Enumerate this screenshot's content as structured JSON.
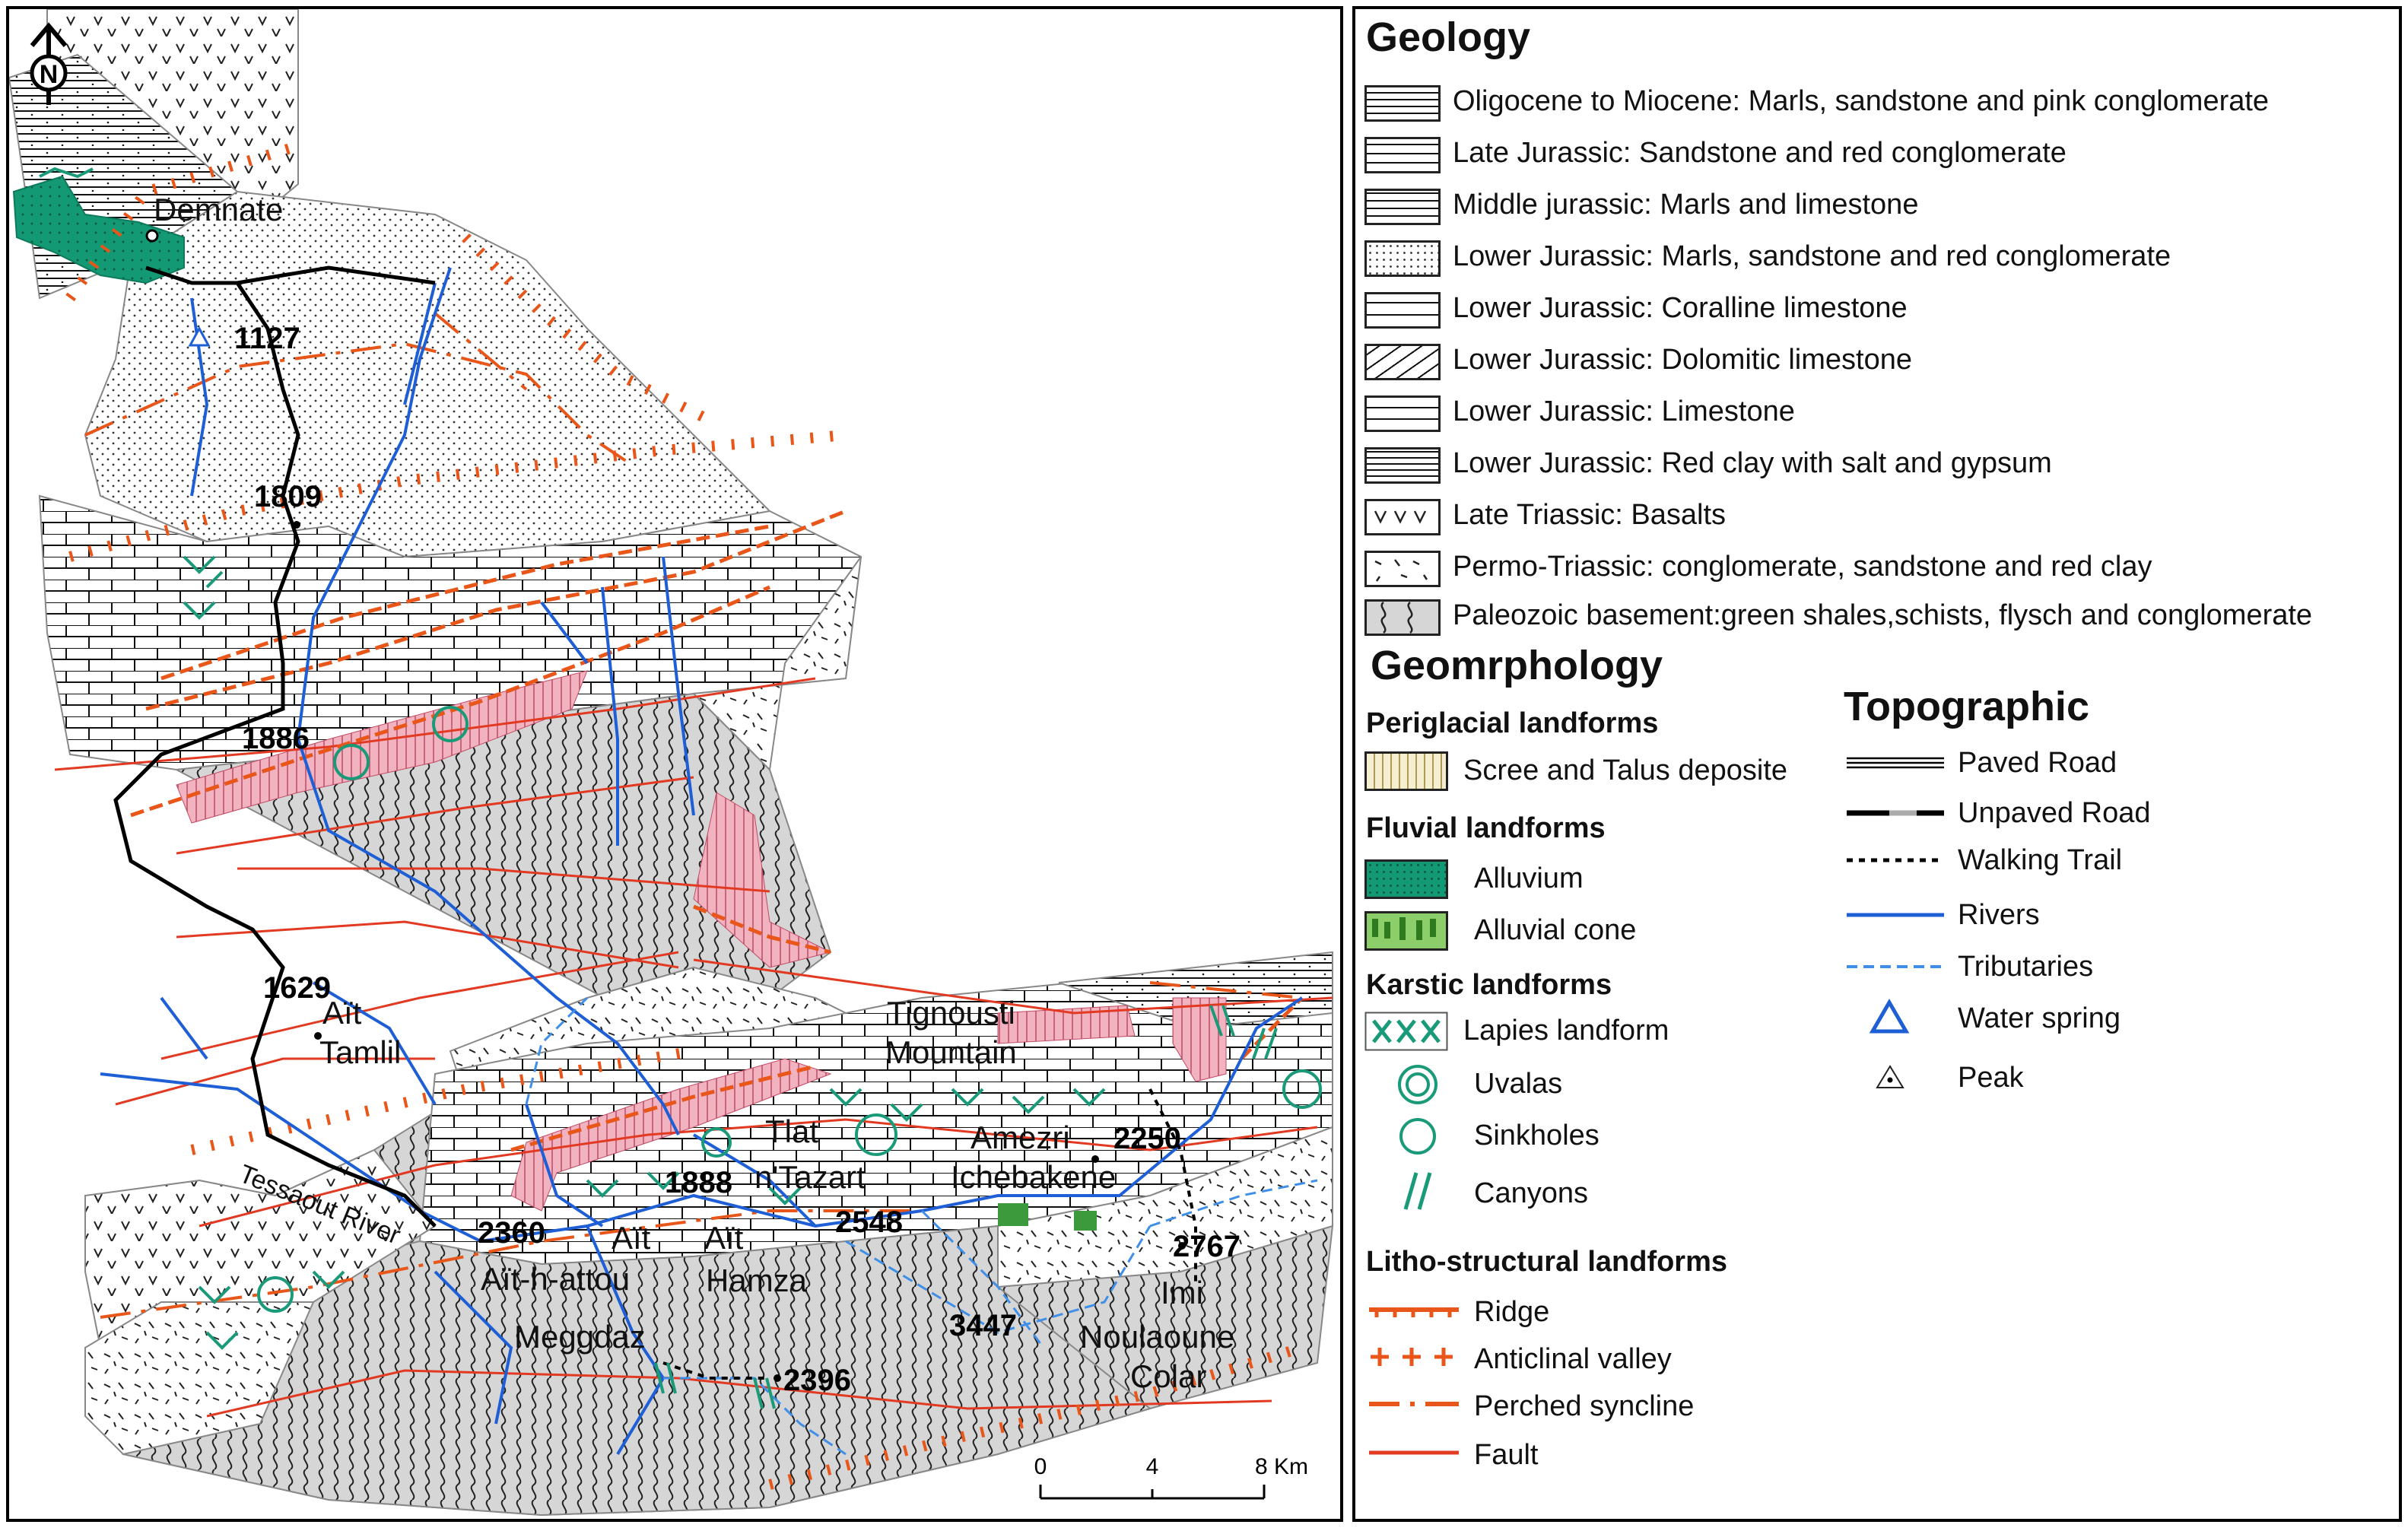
{
  "map": {
    "north_arrow": "N",
    "place_labels": [
      "Demnate",
      "Tignousti",
      "Mountain",
      "Aït",
      "Tamlil",
      "Tessaout River",
      "Tlat",
      "n'Tazart",
      "Amezri",
      "Ichebakene",
      "Aït",
      "Aït-h-attou",
      "Aït",
      "Hamza",
      "Meggdaz",
      "Imi",
      "Noulaoune",
      "Colar"
    ],
    "spot_heights": [
      "1127",
      "1809",
      "1886",
      "1629",
      "1888",
      "2360",
      "2548",
      "2250",
      "2767",
      "3447",
      "2396"
    ],
    "scale_bar": {
      "ticks": [
        "0",
        "4",
        "8 Km"
      ]
    }
  },
  "legend": {
    "geology_title": "Geology",
    "geology_items": [
      "Oligocene to Miocene: Marls, sandstone and pink conglomerate",
      "Late Jurassic: Sandstone and red conglomerate",
      "Middle jurassic: Marls and limestone",
      "Lower Jurassic: Marls, sandstone and red conglomerate",
      "Lower Jurassic: Coralline limestone",
      "Lower Jurassic: Dolomitic limestone",
      "Lower Jurassic: Limestone",
      "Lower Jurassic: Red clay with salt and gypsum",
      "Late Triassic: Basalts",
      "Permo-Triassic: conglomerate, sandstone and red clay",
      "Paleozoic basement:green shales,schists, flysch and conglomerate"
    ],
    "geomorphology_title": "Geomrphology",
    "periglacial_title": "Periglacial landforms",
    "periglacial_items": [
      "Scree and Talus deposite"
    ],
    "fluvial_title": "Fluvial landforms",
    "fluvial_items": [
      "Alluvium",
      "Alluvial cone"
    ],
    "karstic_title": "Karstic landforms",
    "karstic_items": [
      "Lapies landform",
      "Uvalas",
      "Sinkholes",
      "Canyons"
    ],
    "litho_title": "Litho-structural landforms",
    "litho_items": [
      "Ridge",
      "Anticlinal valley",
      "Perched syncline",
      "Fault"
    ],
    "topographic_title": "Topographic",
    "topographic_items": [
      "Paved Road",
      "Unpaved Road",
      "Walking Trail",
      "Rivers",
      "Tributaries",
      "Water spring",
      "Peak"
    ]
  },
  "colors": {
    "river": "#1f5fd6",
    "tributary": "#3f8fe8",
    "fault": "#e23a22",
    "structure": "#e8561a",
    "alluvium": "#17a07a",
    "karst": "#1a9a78",
    "scree": "#e88aa0",
    "basement": "#d9d9d9"
  }
}
